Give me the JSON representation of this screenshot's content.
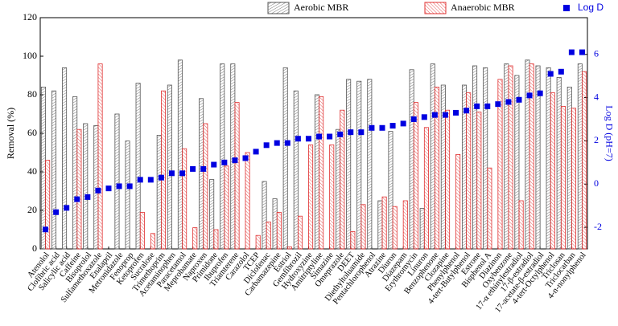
{
  "chart_data": {
    "type": "bar",
    "y_label": "Removal (%)",
    "y2_label": "Log D (pH=7)",
    "categories": [
      "Atenolol",
      "Clofibric acid",
      "Salicylic acid",
      "Caffeine",
      "Bisoprolol",
      "Sulfamethoxazole",
      "Enalapril",
      "Metronidazole",
      "Fenoprop",
      "Ketoprofen",
      "Sucralose",
      "Trimethoprim",
      "Acetaminophen",
      "Paracetamol",
      "Meprobamate",
      "Naproxen",
      "Primidone",
      "Ibuprofen",
      "Triamterene",
      "Carazolol",
      "TCEP",
      "Diclofenac",
      "Carbamazepine",
      "Estriol",
      "Gemfibrozil",
      "Hydroxyzine",
      "Amitriptyline",
      "Simazine",
      "Omeprazole",
      "DEET",
      "Diethyltoluamide",
      "Pentachlorophenol",
      "Atrazine",
      "Diuron",
      "Diazepam",
      "Erythromycin",
      "Linuron",
      "Benzophenone",
      "Clozapine",
      "Phenylphenol",
      "4-tert-Butylphenol",
      "Estrone",
      "Bisphenol A",
      "Diazinon",
      "Oxybenzone",
      "17-α ethinylestradiol",
      "17-β-estradiol",
      "17-acetate-β-estradiol",
      "4-tert-Octylphenol",
      "Triclosan",
      "Triclocarban",
      "4-n-nonylphenol"
    ],
    "series": [
      {
        "name": "Aerobic MBR",
        "color": "#555555",
        "values": [
          84,
          82,
          94,
          79,
          65,
          64,
          null,
          70,
          56,
          86,
          null,
          59,
          85,
          98,
          null,
          78,
          36,
          96,
          96,
          null,
          null,
          35,
          26,
          94,
          82,
          null,
          80,
          null,
          62,
          88,
          87,
          88,
          25,
          61,
          null,
          93,
          21,
          96,
          85,
          null,
          85,
          95,
          94,
          null,
          96,
          90,
          98,
          95,
          94,
          89,
          84,
          96
        ]
      },
      {
        "name": "Anaerobic MBR",
        "color": "#e03030",
        "values": [
          46,
          null,
          null,
          62,
          null,
          96,
          null,
          null,
          null,
          19,
          8,
          82,
          null,
          52,
          11,
          65,
          10,
          43,
          76,
          50,
          7,
          14,
          19,
          1,
          17,
          54,
          79,
          54,
          72,
          9,
          23,
          null,
          27,
          22,
          25,
          76,
          63,
          84,
          72,
          49,
          81,
          71,
          42,
          88,
          95,
          25,
          96,
          null,
          81,
          74,
          73,
          92
        ]
      },
      {
        "name": "Log D",
        "color": "#0000e0",
        "axis": "y2",
        "values": [
          -2.1,
          -1.3,
          -1.1,
          -0.7,
          -0.6,
          -0.3,
          -0.2,
          -0.1,
          -0.1,
          0.2,
          0.2,
          0.3,
          0.5,
          0.5,
          0.7,
          0.7,
          0.9,
          1.0,
          1.1,
          1.2,
          1.5,
          1.8,
          1.9,
          1.9,
          2.1,
          2.1,
          2.2,
          2.2,
          2.3,
          2.4,
          2.4,
          2.6,
          2.6,
          2.7,
          2.8,
          3.0,
          3.1,
          3.2,
          3.2,
          3.3,
          3.4,
          3.6,
          3.6,
          3.7,
          3.8,
          3.9,
          4.1,
          4.2,
          5.1,
          5.2,
          6.1,
          6.1
        ]
      }
    ],
    "ylim": [
      0,
      120
    ],
    "yticks": [
      0,
      20,
      40,
      60,
      80,
      100,
      120
    ],
    "y2lim": [
      -3,
      7.7
    ],
    "y2ticks": [
      -2,
      0,
      2,
      4,
      6
    ],
    "legend": "top"
  }
}
